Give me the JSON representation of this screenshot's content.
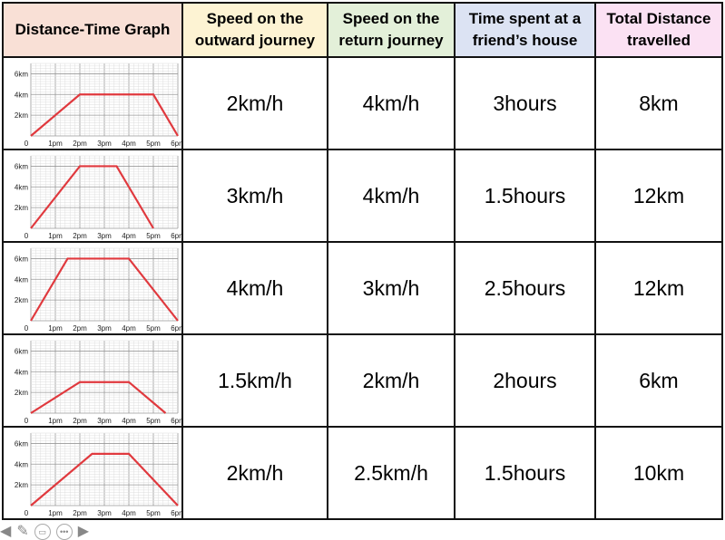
{
  "headers": [
    {
      "label": "Distance-Time Graph",
      "color": "#f9e0d6"
    },
    {
      "label": "Speed on the outward journey",
      "color": "#fdf3d3"
    },
    {
      "label": "Speed on the return journey",
      "color": "#e3f0d9"
    },
    {
      "label": "Time spent at a friend’s house",
      "color": "#dce3f3"
    },
    {
      "label": "Total Distance travelled",
      "color": "#fbe1f3"
    }
  ],
  "rows": [
    {
      "outward": "2km/h",
      "return": "4km/h",
      "time": "3hours",
      "distance": "8km"
    },
    {
      "outward": "3km/h",
      "return": "4km/h",
      "time": "1.5hours",
      "distance": "12km"
    },
    {
      "outward": "4km/h",
      "return": "3km/h",
      "time": "2.5hours",
      "distance": "12km"
    },
    {
      "outward": "1.5km/h",
      "return": "2km/h",
      "time": "2hours",
      "distance": "6km"
    },
    {
      "outward": "2km/h",
      "return": "2.5km/h",
      "time": "1.5hours",
      "distance": "10km"
    }
  ],
  "chart_data": [
    {
      "type": "line",
      "x_ticks": [
        "0",
        "1pm",
        "2pm",
        "3pm",
        "4pm",
        "5pm",
        "6pm"
      ],
      "y_ticks": [
        "2km",
        "4km",
        "6km"
      ],
      "xlim": [
        0,
        6
      ],
      "ylim": [
        0,
        7
      ],
      "grid": true,
      "line_color": "#e0393e",
      "x": [
        0,
        2,
        5,
        6
      ],
      "y": [
        0,
        4,
        4,
        0
      ]
    },
    {
      "type": "line",
      "x_ticks": [
        "0",
        "1pm",
        "2pm",
        "3pm",
        "4pm",
        "5pm",
        "6pm"
      ],
      "y_ticks": [
        "2km",
        "4km",
        "6km"
      ],
      "xlim": [
        0,
        6
      ],
      "ylim": [
        0,
        7
      ],
      "grid": true,
      "line_color": "#e0393e",
      "x": [
        0,
        2,
        3.5,
        5
      ],
      "y": [
        0,
        6,
        6,
        0
      ]
    },
    {
      "type": "line",
      "x_ticks": [
        "0",
        "1pm",
        "2pm",
        "3pm",
        "4pm",
        "5pm",
        "6pm"
      ],
      "y_ticks": [
        "2km",
        "4km",
        "6km"
      ],
      "xlim": [
        0,
        6
      ],
      "ylim": [
        0,
        7
      ],
      "grid": true,
      "line_color": "#e0393e",
      "x": [
        0,
        1.5,
        4,
        6
      ],
      "y": [
        0,
        6,
        6,
        0
      ]
    },
    {
      "type": "line",
      "x_ticks": [
        "0",
        "1pm",
        "2pm",
        "3pm",
        "4pm",
        "5pm",
        "6pm"
      ],
      "y_ticks": [
        "2km",
        "4km",
        "6km"
      ],
      "xlim": [
        0,
        6
      ],
      "ylim": [
        0,
        7
      ],
      "grid": true,
      "line_color": "#e0393e",
      "x": [
        0,
        2,
        4,
        5.5
      ],
      "y": [
        0,
        3,
        3,
        0
      ]
    },
    {
      "type": "line",
      "x_ticks": [
        "0",
        "1pm",
        "2pm",
        "3pm",
        "4pm",
        "5pm",
        "6pm"
      ],
      "y_ticks": [
        "2km",
        "4km",
        "6km"
      ],
      "xlim": [
        0,
        6
      ],
      "ylim": [
        0,
        7
      ],
      "grid": true,
      "line_color": "#e0393e",
      "x": [
        0,
        2.5,
        4,
        6
      ],
      "y": [
        0,
        5,
        5,
        0
      ]
    }
  ],
  "nav": {
    "prev": "◀",
    "pen": "✎",
    "slide": "▭",
    "more": "•••",
    "next": "▶"
  }
}
